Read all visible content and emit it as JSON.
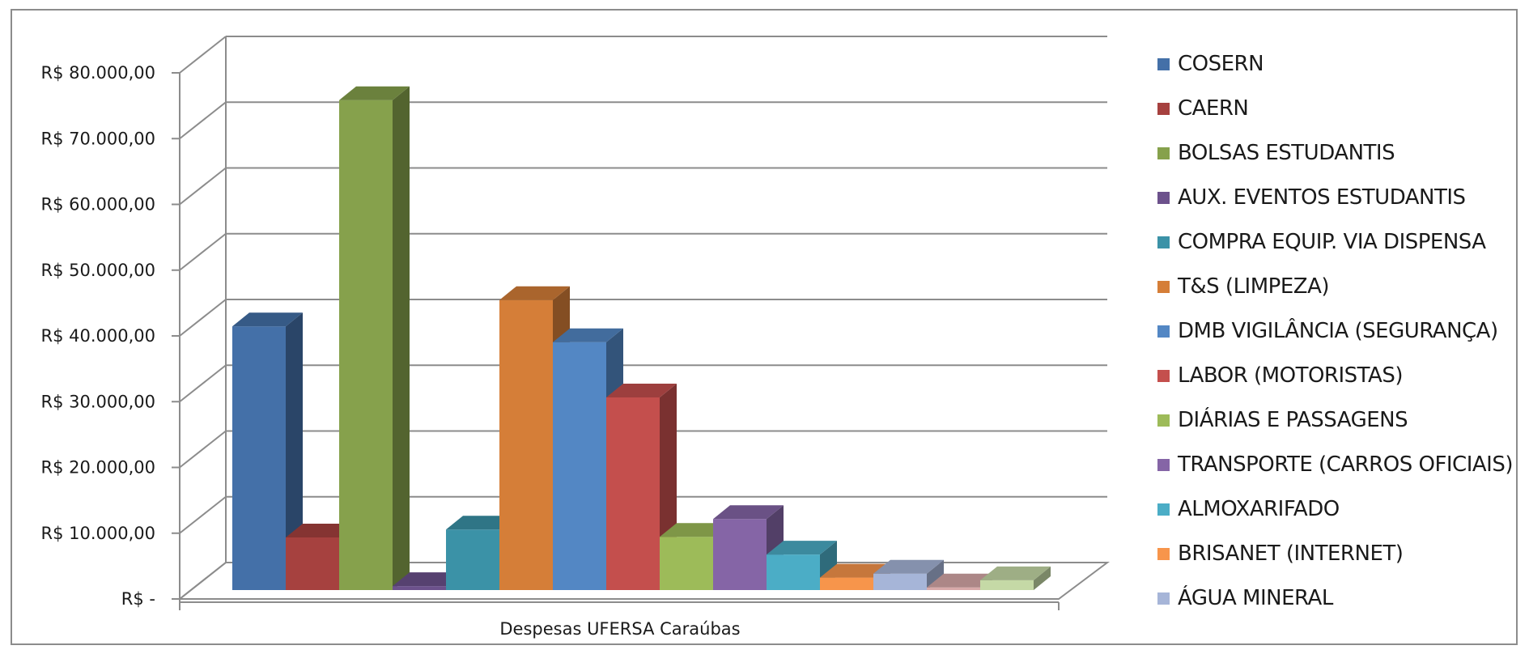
{
  "chart_data": {
    "type": "bar",
    "title": "",
    "xlabel": "",
    "ylabel": "",
    "ylim": [
      0,
      80000
    ],
    "yticks": [
      {
        "value": 0,
        "label": "R$ -"
      },
      {
        "value": 10000,
        "label": "R$ 10.000,00"
      },
      {
        "value": 20000,
        "label": "R$ 20.000,00"
      },
      {
        "value": 30000,
        "label": "R$ 30.000,00"
      },
      {
        "value": 40000,
        "label": "R$ 40.000,00"
      },
      {
        "value": 50000,
        "label": "R$ 50.000,00"
      },
      {
        "value": 60000,
        "label": "R$ 60.000,00"
      },
      {
        "value": 70000,
        "label": "R$ 70.000,00"
      },
      {
        "value": 80000,
        "label": "R$ 80.000,00"
      }
    ],
    "categories": [
      "Despesas UFERSA Caraúbas"
    ],
    "grid": true,
    "legend_position": "right",
    "series": [
      {
        "name": "COSERN",
        "values": [
          40100
        ],
        "color": "#4470a8"
      },
      {
        "name": "CAERN",
        "values": [
          8000
        ],
        "color": "#a6413f"
      },
      {
        "name": "BOLSAS ESTUDANTIS",
        "values": [
          74500
        ],
        "color": "#86a14c"
      },
      {
        "name": "AUX. EVENTOS ESTUDANTIS",
        "values": [
          600
        ],
        "color": "#6c518c"
      },
      {
        "name": "COMPRA EQUIP. VIA DISPENSA",
        "values": [
          9200
        ],
        "color": "#3b92a7"
      },
      {
        "name": "T&S (LIMPEZA)",
        "values": [
          44100
        ],
        "color": "#d57e38"
      },
      {
        "name": "DMB VIGILÂNCIA (SEGURANÇA)",
        "values": [
          37700
        ],
        "color": "#5387c4"
      },
      {
        "name": "LABOR (MOTORISTAS)",
        "values": [
          29300
        ],
        "color": "#c44f4d"
      },
      {
        "name": "DIÁRIAS E PASSAGENS",
        "values": [
          8100
        ],
        "color": "#9dbb59"
      },
      {
        "name": "TRANSPORTE (CARROS OFICIAIS)",
        "values": [
          10800
        ],
        "color": "#8565a6"
      },
      {
        "name": "ALMOXARIFADO",
        "values": [
          5400
        ],
        "color": "#4badc6"
      },
      {
        "name": "BRISANET (INTERNET)",
        "values": [
          1900
        ],
        "color": "#f7954b"
      },
      {
        "name": "ÁGUA MINERAL",
        "values": [
          2500
        ],
        "color": "#a6b5d8"
      },
      {
        "name": "",
        "values": [
          400
        ],
        "color": "#d7a9a9"
      },
      {
        "name": "",
        "values": [
          1500
        ],
        "color": "#c5d9a6"
      }
    ]
  }
}
